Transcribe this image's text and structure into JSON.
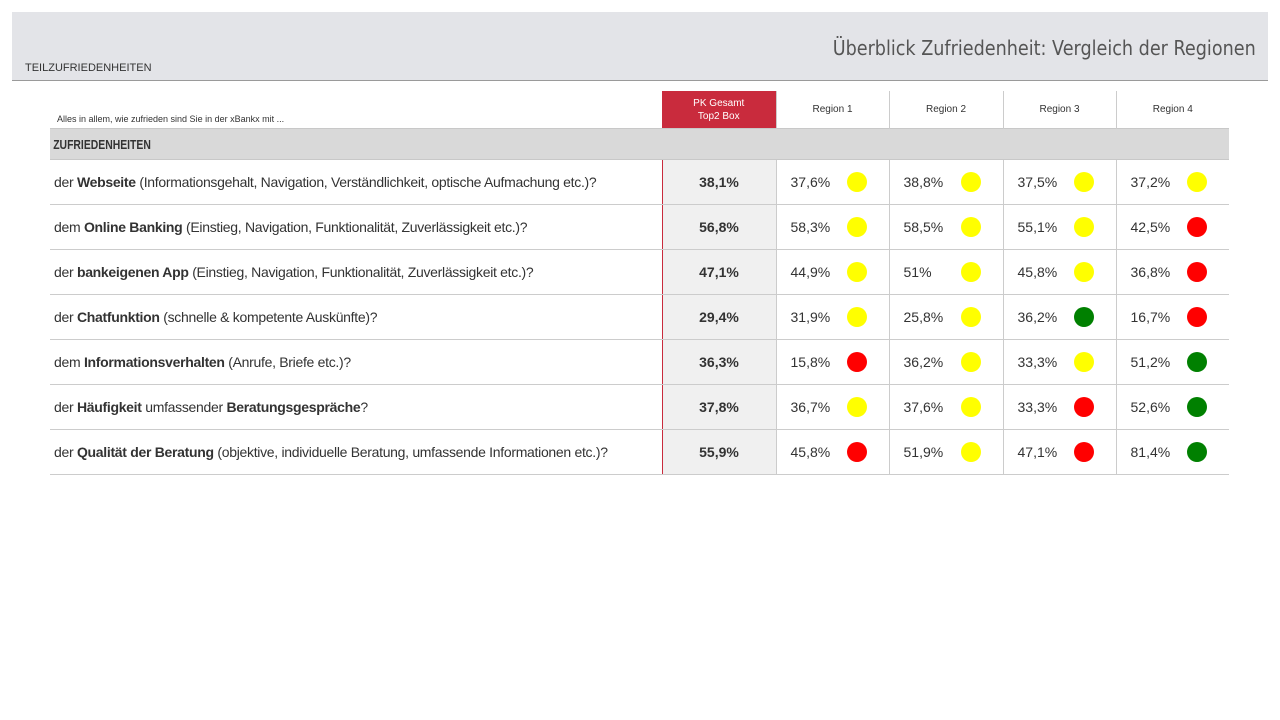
{
  "header": {
    "title": "Überblick Zufriedenheit: Vergleich der Regionen",
    "subtitle": "TEILZUFRIEDENHEITEN"
  },
  "table": {
    "question": "Alles in allem, wie zufrieden sind Sie in der xBankx mit ...",
    "pk_header_line1": "PK Gesamt",
    "pk_header_line2": "Top2 Box",
    "regions": [
      "Region 1",
      "Region 2",
      "Region 3",
      "Region 4"
    ],
    "section": "ZUFRIEDENHEITEN",
    "status_colors": {
      "yellow": "#ffff00",
      "red": "#ff0000",
      "green": "#008000"
    },
    "rows": [
      {
        "pre": "der ",
        "bold": "Webseite",
        "post": " (Informationsgehalt, Navigation, Verständlichkeit, optische Aufmachung etc.)?",
        "pk": "38,1%",
        "values": [
          "37,6%",
          "38,8%",
          "37,5%",
          "37,2%"
        ],
        "status": [
          "yellow",
          "yellow",
          "yellow",
          "yellow"
        ]
      },
      {
        "pre": "dem ",
        "bold": "Online Banking",
        "post": " (Einstieg, Navigation, Funktionalität, Zuverlässigkeit etc.)?",
        "pk": "56,8%",
        "values": [
          "58,3%",
          "58,5%",
          "55,1%",
          "42,5%"
        ],
        "status": [
          "yellow",
          "yellow",
          "yellow",
          "red"
        ]
      },
      {
        "pre": "der ",
        "bold": "bankeigenen App",
        "post": " (Einstieg, Navigation, Funktionalität, Zuverlässigkeit etc.)?",
        "pk": "47,1%",
        "values": [
          "44,9%",
          "51%",
          "45,8%",
          "36,8%"
        ],
        "status": [
          "yellow",
          "yellow",
          "yellow",
          "red"
        ]
      },
      {
        "pre": "der ",
        "bold": "Chatfunktion",
        "post": " (schnelle & kompetente Auskünfte)?",
        "pk": "29,4%",
        "values": [
          "31,9%",
          "25,8%",
          "36,2%",
          "16,7%"
        ],
        "status": [
          "yellow",
          "yellow",
          "green",
          "red"
        ]
      },
      {
        "pre": "dem ",
        "bold": "Informationsverhalten",
        "post": " (Anrufe, Briefe etc.)?",
        "pk": "36,3%",
        "values": [
          "15,8%",
          "36,2%",
          "33,3%",
          "51,2%"
        ],
        "status": [
          "red",
          "yellow",
          "yellow",
          "green"
        ]
      },
      {
        "pre": "der ",
        "bold": "Häufigkeit",
        "post": " umfassender ",
        "bold2": "Beratungsgespräche",
        "post2": "?",
        "pk": "37,8%",
        "values": [
          "36,7%",
          "37,6%",
          "33,3%",
          "52,6%"
        ],
        "status": [
          "yellow",
          "yellow",
          "red",
          "green"
        ]
      },
      {
        "pre": "der ",
        "bold": "Qualität der Beratung",
        "post": " (objektive, individuelle Beratung, umfassende Informationen etc.)?",
        "pk": "55,9%",
        "values": [
          "45,8%",
          "51,9%",
          "47,1%",
          "81,4%"
        ],
        "status": [
          "red",
          "yellow",
          "red",
          "green"
        ]
      }
    ]
  }
}
